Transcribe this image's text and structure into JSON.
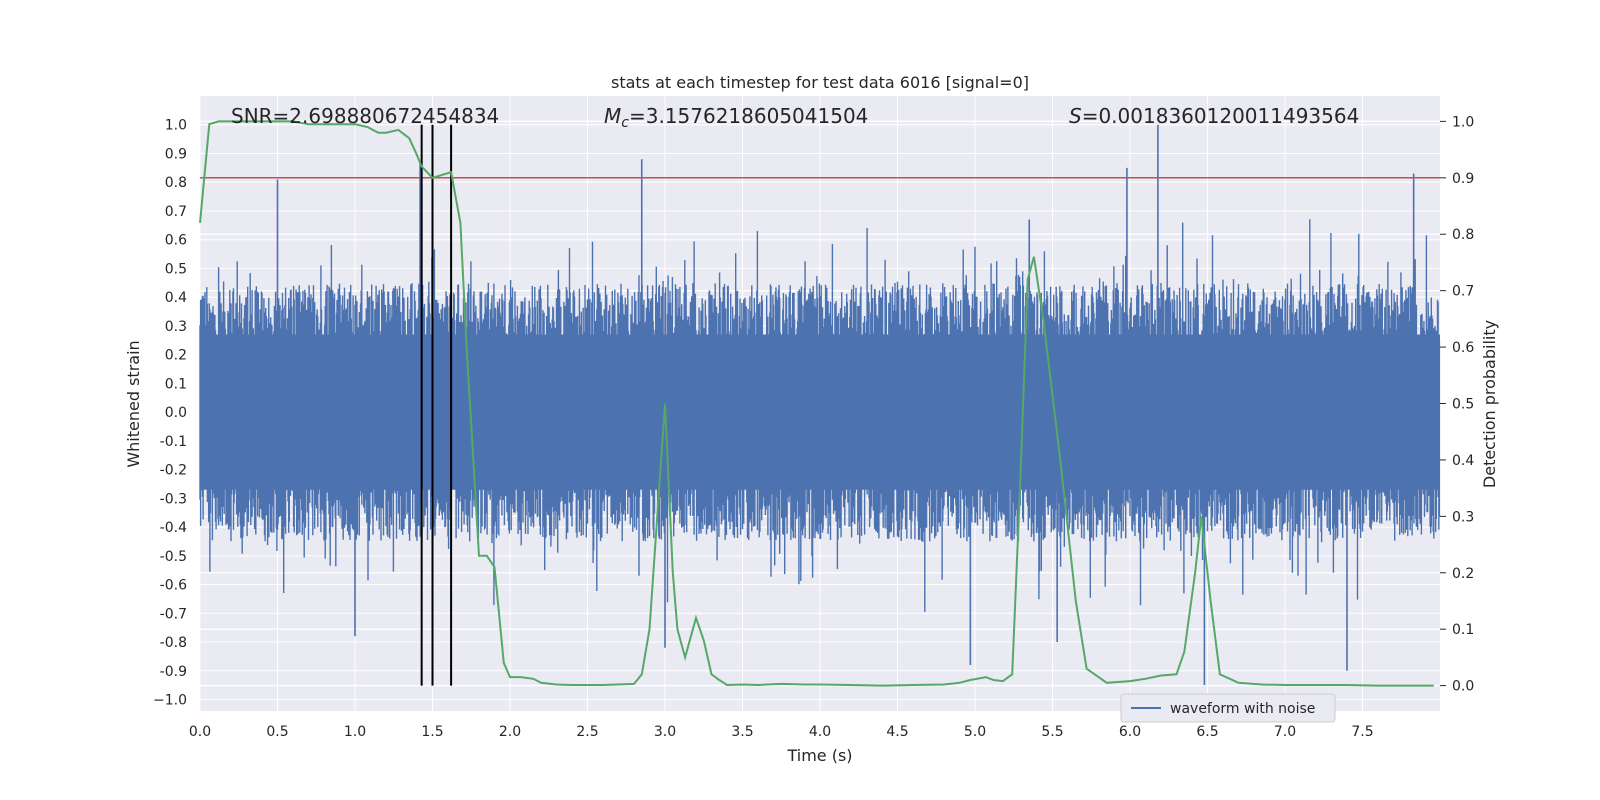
{
  "chart_data": {
    "type": "line",
    "title": "stats at each timestep for test data 6016 [signal=0]",
    "xlabel": "Time (s)",
    "ylabel": "Whitened strain",
    "ylabel_right": "Detection probability",
    "xlim": [
      0.0,
      8.0
    ],
    "ylim_left": [
      -1.04,
      1.1
    ],
    "ylim_right": [
      -0.045,
      1.045
    ],
    "x_ticks": [
      "0.0",
      "0.5",
      "1.0",
      "1.5",
      "2.0",
      "2.5",
      "3.0",
      "3.5",
      "4.0",
      "4.5",
      "5.0",
      "5.5",
      "6.0",
      "6.5",
      "7.0",
      "7.5"
    ],
    "y_ticks_left": [
      "1.0",
      "0.9",
      "0.8",
      "0.7",
      "0.6",
      "0.5",
      "0.4",
      "0.3",
      "0.2",
      "0.1",
      "0.0",
      "-0.1",
      "-0.2",
      "-0.3",
      "-0.4",
      "-0.5",
      "-0.6",
      "-0.7",
      "-0.8",
      "-0.9",
      "−1.0"
    ],
    "y_ticks_right": [
      "1.0",
      "0.9",
      "0.8",
      "0.7",
      "0.6",
      "0.5",
      "0.4",
      "0.3",
      "0.2",
      "0.1",
      "0.0"
    ],
    "annotations": {
      "snr": "SNR=2.698880672454834",
      "mc_symbol": "M",
      "mc_sub": "c",
      "mc_value": "=3.1576218605041504",
      "s_symbol": "S",
      "s_value": "=0.0018360120011493564"
    },
    "threshold_right": 0.9,
    "threshold_color": "#c44e52",
    "detection_markers_x": [
      1.43,
      1.5,
      1.62
    ],
    "legend": [
      "waveform with noise"
    ],
    "legend_position": "bottom-right",
    "series": [
      {
        "name": "waveform with noise",
        "axis": "left",
        "color": "#4c72b0",
        "description": "dense noise trace, bulk amplitude about ±0.45",
        "notable_peaks": [
          {
            "x": 0.5,
            "y": 0.81
          },
          {
            "x": 1.42,
            "y": 0.87
          },
          {
            "x": 2.85,
            "y": 0.88
          },
          {
            "x": 5.35,
            "y": 0.67
          },
          {
            "x": 5.98,
            "y": 0.85
          },
          {
            "x": 6.18,
            "y": 1.0
          },
          {
            "x": 7.83,
            "y": 0.83
          },
          {
            "x": 1.0,
            "y": -0.78
          },
          {
            "x": 3.0,
            "y": -0.82
          },
          {
            "x": 4.97,
            "y": -0.88
          },
          {
            "x": 5.53,
            "y": -0.8
          },
          {
            "x": 6.48,
            "y": -0.95
          },
          {
            "x": 7.4,
            "y": -0.9
          }
        ]
      },
      {
        "name": "detection probability",
        "axis": "right",
        "color": "#55a868",
        "x": [
          0.0,
          0.06,
          0.12,
          0.2,
          0.3,
          0.4,
          0.5,
          0.6,
          0.7,
          0.8,
          0.9,
          1.0,
          1.08,
          1.15,
          1.2,
          1.28,
          1.35,
          1.4,
          1.43,
          1.5,
          1.56,
          1.62,
          1.68,
          1.72,
          1.8,
          1.85,
          1.9,
          1.96,
          2.0,
          2.07,
          2.15,
          2.2,
          2.3,
          2.4,
          2.6,
          2.8,
          2.85,
          2.9,
          3.0,
          3.05,
          3.08,
          3.13,
          3.2,
          3.25,
          3.3,
          3.35,
          3.4,
          3.5,
          3.6,
          3.75,
          3.9,
          4.0,
          4.2,
          4.4,
          4.6,
          4.8,
          4.9,
          4.97,
          5.07,
          5.12,
          5.18,
          5.24,
          5.29,
          5.34,
          5.38,
          5.44,
          5.55,
          5.65,
          5.72,
          5.85,
          6.0,
          6.1,
          6.2,
          6.3,
          6.35,
          6.42,
          6.46,
          6.52,
          6.58,
          6.7,
          6.85,
          7.0,
          7.2,
          7.4,
          7.6,
          7.8,
          7.96
        ],
        "y": [
          0.82,
          0.995,
          1.0,
          1.0,
          1.0,
          1.0,
          1.0,
          1.0,
          0.995,
          0.995,
          0.995,
          0.995,
          0.99,
          0.98,
          0.98,
          0.985,
          0.97,
          0.94,
          0.92,
          0.9,
          0.905,
          0.91,
          0.82,
          0.6,
          0.23,
          0.23,
          0.21,
          0.04,
          0.015,
          0.015,
          0.012,
          0.005,
          0.002,
          0.001,
          0.001,
          0.003,
          0.02,
          0.1,
          0.5,
          0.2,
          0.1,
          0.05,
          0.12,
          0.08,
          0.02,
          0.01,
          0.001,
          0.002,
          0.001,
          0.003,
          0.002,
          0.002,
          0.001,
          0.0,
          0.001,
          0.002,
          0.005,
          0.01,
          0.015,
          0.01,
          0.008,
          0.02,
          0.35,
          0.72,
          0.76,
          0.65,
          0.4,
          0.15,
          0.03,
          0.005,
          0.008,
          0.012,
          0.018,
          0.02,
          0.06,
          0.2,
          0.3,
          0.15,
          0.02,
          0.005,
          0.002,
          0.001,
          0.001,
          0.001,
          0.0,
          0.0,
          0.0
        ]
      }
    ]
  }
}
